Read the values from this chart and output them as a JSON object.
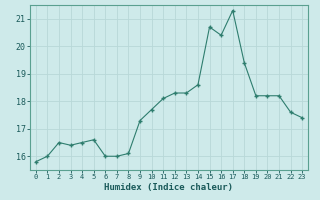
{
  "x": [
    0,
    1,
    2,
    3,
    4,
    5,
    6,
    7,
    8,
    9,
    10,
    11,
    12,
    13,
    14,
    15,
    16,
    17,
    18,
    19,
    20,
    21,
    22,
    23
  ],
  "y": [
    15.8,
    16.0,
    16.5,
    16.4,
    16.5,
    16.6,
    16.0,
    16.0,
    16.1,
    17.3,
    17.7,
    18.1,
    18.3,
    18.3,
    18.6,
    20.7,
    20.4,
    21.3,
    19.4,
    18.2,
    18.2,
    18.2,
    17.6,
    17.4
  ],
  "line_color": "#2e7d6e",
  "marker": "+",
  "marker_size": 4,
  "bg_color": "#ceeaea",
  "grid_color": "#b8d8d8",
  "xlabel": "Humidex (Indice chaleur)",
  "xlim": [
    -0.5,
    23.5
  ],
  "ylim": [
    15.5,
    21.5
  ],
  "yticks": [
    16,
    17,
    18,
    19,
    20,
    21
  ],
  "xtick_labels": [
    "0",
    "1",
    "2",
    "3",
    "4",
    "5",
    "6",
    "7",
    "8",
    "9",
    "10",
    "11",
    "12",
    "13",
    "14",
    "15",
    "16",
    "17",
    "18",
    "19",
    "20",
    "21",
    "22",
    "23"
  ]
}
